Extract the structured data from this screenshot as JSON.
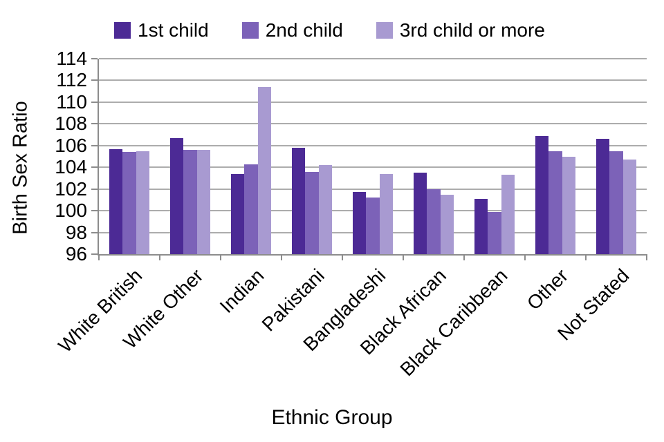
{
  "chart_data": {
    "type": "bar",
    "title": "",
    "xlabel": "Ethnic Group",
    "ylabel": "Birth Sex Ratio",
    "categories": [
      "White British",
      "White Other",
      "Indian",
      "Pakistani",
      "Bangladeshi",
      "Black African",
      "Black Caribbean",
      "Other",
      "Not Stated"
    ],
    "series": [
      {
        "name": "1st child",
        "color": "#4c2a95",
        "values": [
          105.7,
          106.7,
          103.4,
          105.8,
          101.7,
          103.5,
          101.1,
          106.9,
          106.6
        ]
      },
      {
        "name": "2nd child",
        "color": "#7c62b8",
        "values": [
          105.4,
          105.6,
          104.3,
          103.6,
          101.2,
          102.0,
          99.9,
          105.5,
          105.5
        ]
      },
      {
        "name": "3rd child or more",
        "color": "#a89ad1",
        "values": [
          105.5,
          105.6,
          111.4,
          104.2,
          103.4,
          101.5,
          103.3,
          105.0,
          104.7
        ]
      }
    ],
    "ylim": [
      96,
      114
    ],
    "yticks": [
      96,
      98,
      100,
      102,
      104,
      106,
      108,
      110,
      112,
      114
    ],
    "grid": true,
    "legend_position": "top",
    "gridline_color": "#acacac",
    "axis_color": "#8c8c8c"
  }
}
